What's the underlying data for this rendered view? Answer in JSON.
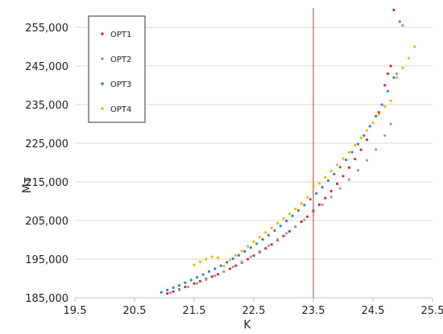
{
  "chart_data": {
    "type": "scatter",
    "xlabel": "K",
    "ylabel": "Мτ",
    "xlim": [
      19.5,
      25.5
    ],
    "ylim": [
      185000,
      260000
    ],
    "x_ticks": [
      19.5,
      20.5,
      21.5,
      22.5,
      23.5,
      24.5,
      25.5
    ],
    "x_tick_labels": [
      "19.5",
      "20.5",
      "21.5",
      "22.5",
      "23.5",
      "24.5",
      "25.5"
    ],
    "y_ticks": [
      185000,
      195000,
      205000,
      215000,
      225000,
      235000,
      245000,
      255000
    ],
    "y_tick_labels": [
      "185,000",
      "195,000",
      "205,000",
      "215,000",
      "225,000",
      "235,000",
      "245,000",
      "255,000"
    ],
    "grid": "horizontal",
    "legend_position": "top-left",
    "reference_line": {
      "x": 23.5,
      "color": "#e52222"
    },
    "series": [
      {
        "name": "OPT1",
        "color": "#d42a2a",
        "x": [
          21.05,
          21.15,
          21.25,
          21.35,
          21.5,
          21.6,
          21.7,
          21.8,
          21.9,
          22.0,
          22.1,
          22.2,
          22.3,
          22.4,
          22.5,
          22.6,
          22.7,
          22.8,
          22.9,
          23.0,
          23.1,
          23.2,
          23.3,
          23.4,
          23.5,
          23.6,
          23.7,
          23.8,
          23.9,
          24.0,
          24.1,
          24.2,
          24.3,
          24.4,
          24.6,
          24.7,
          24.75,
          24.8,
          24.85
        ],
        "y": [
          186100,
          186600,
          187200,
          187800,
          188700,
          189300,
          189900,
          190500,
          191100,
          191800,
          192500,
          193300,
          194100,
          195000,
          195900,
          196800,
          197800,
          198800,
          199900,
          201000,
          202200,
          203400,
          204700,
          206000,
          207500,
          209100,
          210800,
          212600,
          214500,
          216500,
          218700,
          220900,
          223300,
          225900,
          233000,
          240000,
          243000,
          245000,
          259500
        ]
      },
      {
        "name": "OPT2",
        "color": "#9a9a9a",
        "x": [
          21.1,
          21.25,
          21.4,
          21.55,
          21.7,
          21.85,
          22.0,
          22.15,
          22.3,
          22.45,
          22.6,
          22.75,
          22.9,
          23.05,
          23.2,
          23.35,
          23.5,
          23.65,
          23.8,
          23.95,
          24.1,
          24.25,
          24.4,
          24.55,
          24.7,
          24.8,
          24.9,
          25.0
        ],
        "y": [
          186300,
          187000,
          187800,
          188700,
          189700,
          190700,
          191800,
          193000,
          194300,
          195600,
          197000,
          198500,
          200100,
          201700,
          203400,
          205200,
          207100,
          209100,
          211100,
          213300,
          215600,
          218000,
          220600,
          223400,
          227000,
          230000,
          243000,
          255500
        ]
      },
      {
        "name": "OPT3",
        "color": "#2f7fd1",
        "x": [
          20.95,
          21.05,
          21.15,
          21.25,
          21.35,
          21.45,
          21.55,
          21.65,
          21.75,
          21.85,
          21.95,
          22.05,
          22.15,
          22.25,
          22.35,
          22.45,
          22.55,
          22.65,
          22.75,
          22.85,
          22.95,
          23.05,
          23.15,
          23.25,
          23.35,
          23.45,
          23.55,
          23.65,
          23.75,
          23.85,
          23.95,
          24.05,
          24.15,
          24.25,
          24.35,
          24.45,
          24.55,
          24.65,
          24.75,
          24.85,
          24.95
        ],
        "y": [
          186400,
          187000,
          187600,
          188200,
          188900,
          189600,
          190300,
          191000,
          191800,
          192500,
          193300,
          194200,
          195100,
          196000,
          197000,
          198000,
          199000,
          200100,
          201200,
          202400,
          203600,
          204900,
          206200,
          207600,
          209000,
          210500,
          212000,
          213600,
          215300,
          217000,
          218800,
          220700,
          222700,
          224800,
          227000,
          229400,
          232000,
          235000,
          238500,
          242000,
          256500
        ]
      },
      {
        "name": "OPT4",
        "color": "#f5b400",
        "x": [
          21.5,
          21.6,
          21.7,
          21.8,
          21.9,
          22.0,
          22.1,
          22.2,
          22.3,
          22.4,
          22.5,
          22.6,
          22.7,
          22.8,
          22.9,
          23.0,
          23.1,
          23.2,
          23.3,
          23.4,
          23.5,
          23.6,
          23.7,
          23.8,
          23.9,
          24.0,
          24.1,
          24.2,
          24.3,
          24.4,
          24.5,
          24.6,
          24.7,
          24.8,
          24.9,
          25.0,
          25.1,
          25.2
        ],
        "y": [
          193500,
          194300,
          195000,
          195600,
          195400,
          193200,
          194800,
          196000,
          197100,
          198300,
          199500,
          200700,
          201900,
          203100,
          204300,
          205500,
          206700,
          208000,
          209400,
          211000,
          213800,
          214600,
          216200,
          217800,
          219400,
          221000,
          222700,
          224500,
          226400,
          228300,
          230300,
          232500,
          234500,
          236000,
          242000,
          244500,
          247000,
          250000
        ]
      }
    ]
  }
}
